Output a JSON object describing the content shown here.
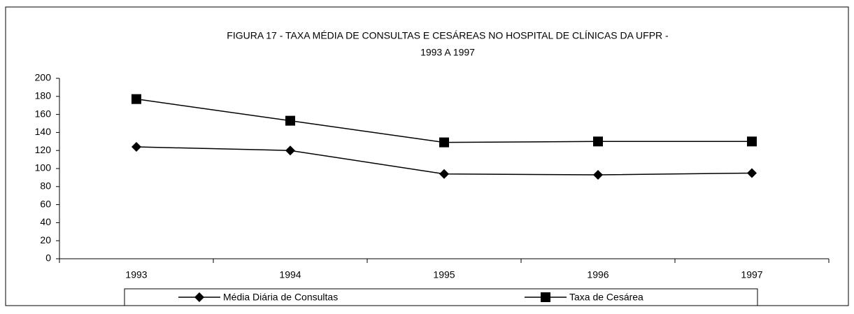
{
  "chart_data": {
    "type": "line",
    "title": [
      "FIGURA 17 - TAXA MÉDIA DE CONSULTAS E CESÁREAS NO HOSPITAL DE CLÍNICAS DA UFPR -",
      "1993 A 1997"
    ],
    "categories": [
      "1993",
      "1994",
      "1995",
      "1996",
      "1997"
    ],
    "series": [
      {
        "name": "Média Diária de Consultas",
        "color": "#000000",
        "marker": "diamond",
        "values": [
          124,
          120,
          94,
          93,
          95
        ]
      },
      {
        "name": "Taxa de Cesárea",
        "color": "#000000",
        "marker": "square",
        "values": [
          177,
          153,
          129,
          130,
          130
        ]
      }
    ],
    "ylim": [
      0,
      200
    ],
    "yticks": [
      0,
      20,
      40,
      60,
      80,
      100,
      120,
      140,
      160,
      180,
      200
    ],
    "grid": false,
    "legend": "bottom"
  }
}
